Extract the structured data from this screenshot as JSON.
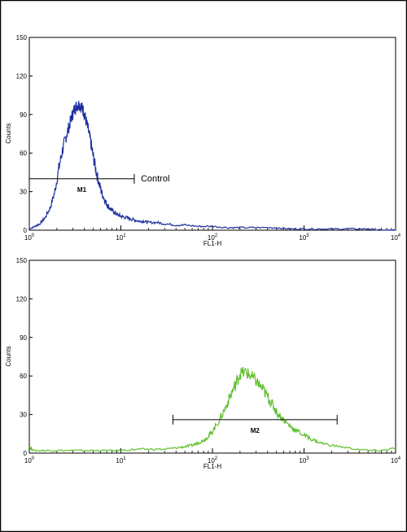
{
  "chart_data": [
    {
      "type": "line",
      "title": "",
      "xlabel": "FL1-H",
      "ylabel": "Counts",
      "xscale": "log",
      "xlim": [
        1,
        10000
      ],
      "ylim": [
        0,
        150
      ],
      "x_ticks": [
        {
          "base": "10",
          "exp": "0"
        },
        {
          "base": "10",
          "exp": "1"
        },
        {
          "base": "10",
          "exp": "2"
        },
        {
          "base": "10",
          "exp": "3"
        },
        {
          "base": "10",
          "exp": "4"
        }
      ],
      "y_ticks": [
        "0",
        "30",
        "60",
        "90",
        "120",
        "150"
      ],
      "line_color": "#1c2fa0",
      "series": [
        {
          "x": [
            1.0,
            1.15,
            1.3,
            1.5,
            1.7,
            1.9,
            2.1,
            2.3,
            2.5,
            2.7,
            2.9,
            3.1,
            3.3,
            3.5,
            3.7,
            3.9,
            4.1,
            4.4,
            4.7,
            5.0,
            5.4,
            5.8,
            6.2,
            6.7,
            7.2,
            7.8,
            8.5,
            9.2,
            10,
            11,
            12.5,
            14,
            16,
            18,
            20,
            25,
            30,
            40,
            50,
            70,
            100,
            150,
            200,
            300,
            500,
            700,
            1000,
            1500,
            2000,
            3000,
            5000,
            7000,
            10000
          ],
          "y": [
            1,
            3,
            5,
            10,
            18,
            30,
            48,
            62,
            72,
            80,
            88,
            94,
            97,
            98,
            96,
            93,
            87,
            78,
            68,
            57,
            45,
            36,
            29,
            23,
            19,
            16,
            14,
            12,
            11,
            10,
            9,
            8,
            7,
            7,
            6,
            6,
            5,
            4,
            4,
            3,
            3,
            2,
            2,
            2,
            2,
            1,
            1,
            1,
            1,
            1,
            1,
            0,
            0
          ]
        }
      ],
      "gate": {
        "label": "M1",
        "x_start": 1,
        "x_end": 14,
        "y": 40
      },
      "annotation": "Control"
    },
    {
      "type": "line",
      "title": "",
      "xlabel": "FL1-H",
      "ylabel": "Counts",
      "xscale": "log",
      "xlim": [
        1,
        10000
      ],
      "ylim": [
        0,
        150
      ],
      "x_ticks": [
        {
          "base": "10",
          "exp": "0"
        },
        {
          "base": "10",
          "exp": "1"
        },
        {
          "base": "10",
          "exp": "2"
        },
        {
          "base": "10",
          "exp": "3"
        },
        {
          "base": "10",
          "exp": "4"
        }
      ],
      "y_ticks": [
        "0",
        "30",
        "60",
        "90",
        "120",
        "150"
      ],
      "line_color": "#5fbf2c",
      "series": [
        {
          "x": [
            1.0,
            1.1,
            1.5,
            2,
            3,
            5,
            7,
            10,
            15,
            20,
            30,
            40,
            50,
            60,
            70,
            80,
            90,
            100,
            120,
            140,
            160,
            180,
            200,
            230,
            260,
            300,
            350,
            400,
            450,
            500,
            600,
            700,
            800,
            1000,
            1200,
            1500,
            2000,
            3000,
            5000,
            7000,
            10000
          ],
          "y": [
            5,
            2,
            2,
            2,
            2,
            2,
            2,
            2,
            3,
            3,
            3,
            4,
            5,
            6,
            8,
            10,
            13,
            17,
            26,
            36,
            46,
            54,
            62,
            63,
            60,
            56,
            50,
            44,
            38,
            32,
            26,
            21,
            18,
            14,
            11,
            8,
            6,
            4,
            2,
            2,
            4
          ],
          "name": ""
        }
      ],
      "gate": {
        "label": "M2",
        "x_start": 37,
        "x_end": 2300,
        "y": 26
      },
      "annotation": ""
    }
  ]
}
